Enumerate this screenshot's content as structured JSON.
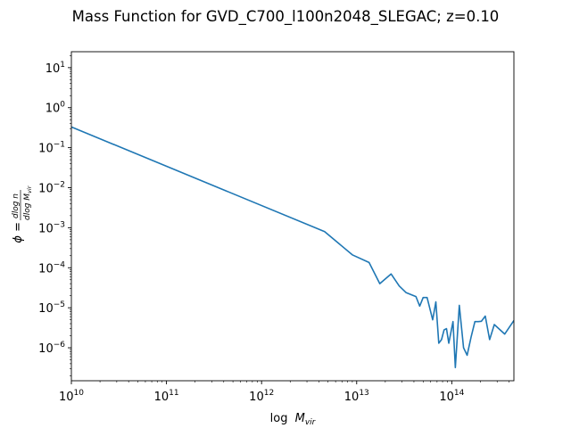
{
  "chart_data": {
    "type": "line",
    "title": "Mass Function for GVD_C700_l100n2048_SLEGAC; z=0.10",
    "xlabel_base": "log",
    "xlabel_var": "M",
    "xlabel_sub": "vir",
    "ylabel_phi": "ϕ =",
    "ylabel_num": "dlog n",
    "ylabel_den_base": "dlog M",
    "ylabel_den_sub": "vir",
    "x_scale": "log",
    "y_scale": "log",
    "xlim": [
      10000000000.0,
      450000000000000.0
    ],
    "ylim": [
      1.5e-07,
      25.0
    ],
    "grid": false,
    "legend": "none",
    "color": "#1f77b4",
    "x_ticks": [
      {
        "value": 10000000000.0,
        "base": "10",
        "exp": "10"
      },
      {
        "value": 100000000000.0,
        "base": "10",
        "exp": "11"
      },
      {
        "value": 1000000000000.0,
        "base": "10",
        "exp": "12"
      },
      {
        "value": 10000000000000.0,
        "base": "10",
        "exp": "13"
      },
      {
        "value": 100000000000000.0,
        "base": "10",
        "exp": "14"
      }
    ],
    "y_ticks": [
      {
        "value": 1e-06,
        "base": "10",
        "exp": "−6"
      },
      {
        "value": 1e-05,
        "base": "10",
        "exp": "−5"
      },
      {
        "value": 0.0001,
        "base": "10",
        "exp": "−4"
      },
      {
        "value": 0.001,
        "base": "10",
        "exp": "−3"
      },
      {
        "value": 0.01,
        "base": "10",
        "exp": "−2"
      },
      {
        "value": 0.1,
        "base": "10",
        "exp": "−1"
      },
      {
        "value": 1.0,
        "base": "10",
        "exp": "0"
      },
      {
        "value": 10.0,
        "base": "10",
        "exp": "1"
      }
    ],
    "x": [
      10000000000.0,
      4600000000000.0,
      9000000000000.0,
      13500000000000.0,
      17500000000000.0,
      23000000000000.0,
      28000000000000.0,
      33000000000000.0,
      42000000000000.0,
      46000000000000.0,
      50000000000000.0,
      55000000000000.0,
      63000000000000.0,
      68000000000000.0,
      73000000000000.0,
      78000000000000.0,
      83000000000000.0,
      88000000000000.0,
      93000000000000.0,
      103000000000000.0,
      109000000000000.0,
      120000000000000.0,
      133000000000000.0,
      145000000000000.0,
      160000000000000.0,
      175000000000000.0,
      190000000000000.0,
      205000000000000.0,
      225000000000000.0,
      250000000000000.0,
      280000000000000.0,
      360000000000000.0,
      450000000000000.0
    ],
    "y": [
      0.33,
      0.0008,
      0.00021,
      0.000135,
      4e-05,
      7e-05,
      3.5e-05,
      2.4e-05,
      1.9e-05,
      1.1e-05,
      1.8e-05,
      1.8e-05,
      5e-06,
      1.4e-05,
      1.3e-06,
      1.6e-06,
      2.8e-06,
      3e-06,
      1.3e-06,
      4.5e-06,
      3.2e-07,
      1.15e-05,
      1e-06,
      6.5e-07,
      1.9e-06,
      4.5e-06,
      4.5e-06,
      4.6e-06,
      6.2e-06,
      1.6e-06,
      3.8e-06,
      2.2e-06,
      4.8e-06
    ]
  }
}
